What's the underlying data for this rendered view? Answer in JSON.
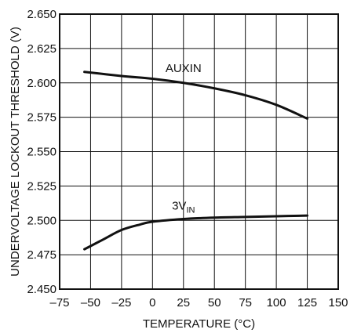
{
  "chart_data": {
    "type": "line",
    "xlabel": "TEMPERATURE (°C)",
    "ylabel": "UNDERVOLTAGE LOCKOUT THRESHOLD (V)",
    "xlim": [
      -75,
      150
    ],
    "ylim": [
      2.45,
      2.65
    ],
    "x_ticks": [
      -75,
      -50,
      -25,
      0,
      25,
      50,
      75,
      100,
      125,
      150
    ],
    "x_tick_labels": [
      "–75",
      "–50",
      "–25",
      "0",
      "25",
      "50",
      "75",
      "100",
      "125",
      "150"
    ],
    "y_ticks": [
      2.45,
      2.475,
      2.5,
      2.525,
      2.55,
      2.575,
      2.6,
      2.625,
      2.65
    ],
    "y_tick_labels": [
      "2.450",
      "2.475",
      "2.500",
      "2.525",
      "2.550",
      "2.575",
      "2.600",
      "2.625",
      "2.650"
    ],
    "grid": true,
    "series": [
      {
        "name": "AUXIN",
        "label_main": "AUXIN",
        "label_sub": "",
        "color": "#111111",
        "x": [
          -55,
          -25,
          0,
          25,
          50,
          75,
          100,
          125
        ],
        "y": [
          2.608,
          2.605,
          2.603,
          2.6,
          2.596,
          2.591,
          2.584,
          2.574
        ]
      },
      {
        "name": "3VIN",
        "label_main": "3V",
        "label_sub": "IN",
        "color": "#111111",
        "x": [
          -55,
          -40,
          -25,
          -10,
          0,
          25,
          50,
          75,
          100,
          125
        ],
        "y": [
          2.479,
          2.486,
          2.493,
          2.497,
          2.499,
          2.501,
          2.502,
          2.5025,
          2.503,
          2.5035
        ]
      }
    ]
  }
}
